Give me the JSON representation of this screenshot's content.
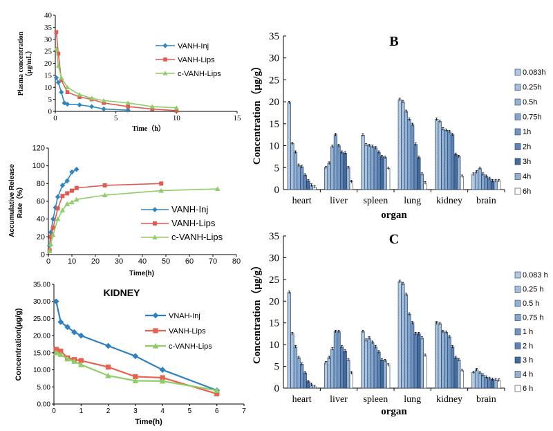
{
  "colors": {
    "inj": "#2e86c1",
    "lips": "#e05a4f",
    "clips": "#8fcd6a",
    "kidney_inj": "#2f80c0",
    "kidney_lips": "#e8604f",
    "kidney_clips": "#8fcd6a",
    "axis": "#000000",
    "bar_edge": "#1f3550"
  },
  "chart_data": [
    {
      "id": "plasma",
      "type": "line",
      "title": "",
      "xlabel": "Time（h）",
      "ylabel": [
        "Plasma concentration",
        "（μg/mL）"
      ],
      "xlim": [
        0,
        15
      ],
      "ylim": [
        0,
        40
      ],
      "xticks": [
        0,
        5,
        10,
        15
      ],
      "yticks": [
        0,
        5,
        10,
        15,
        20,
        25,
        30,
        35,
        40
      ],
      "legend_position": "right",
      "series": [
        {
          "name": "VANH-Inj",
          "color": "#2e86c1",
          "marker": "diamond",
          "x": [
            0.083,
            0.25,
            0.5,
            0.75,
            1,
            2,
            3,
            4,
            6
          ],
          "y": [
            14,
            12,
            8,
            3.5,
            3,
            2.7,
            2,
            1,
            0.5
          ]
        },
        {
          "name": "VANH-Lips",
          "color": "#e05a4f",
          "marker": "square",
          "x": [
            0.083,
            0.25,
            0.5,
            1,
            2,
            3,
            4,
            6,
            8,
            10
          ],
          "y": [
            33,
            24,
            13,
            8,
            6,
            5,
            3.5,
            2,
            1,
            0.3
          ]
        },
        {
          "name": "c-VANH-Lips",
          "color": "#8fcd6a",
          "marker": "triangle",
          "x": [
            0.083,
            0.25,
            0.5,
            1,
            2,
            3,
            4,
            6,
            8,
            10
          ],
          "y": [
            26,
            19,
            14,
            10,
            7,
            5.5,
            4.5,
            3.5,
            2,
            1.5
          ]
        }
      ]
    },
    {
      "id": "release",
      "type": "line",
      "title": "",
      "xlabel": "Time(h)",
      "ylabel": [
        "Accumulative Release",
        "Rate（%）"
      ],
      "xlim": [
        0,
        80
      ],
      "ylim": [
        0,
        120
      ],
      "xticks": [
        0,
        10,
        20,
        30,
        40,
        50,
        60,
        70,
        80
      ],
      "yticks": [
        0,
        20,
        40,
        60,
        80,
        100,
        120
      ],
      "legend_position": "bottom-right",
      "series": [
        {
          "name": "VANH-Inj",
          "color": "#2e86c1",
          "marker": "diamond",
          "x": [
            0.5,
            1,
            2,
            3,
            4,
            6,
            8,
            10,
            12
          ],
          "y": [
            10,
            25,
            40,
            53,
            65,
            78,
            83,
            93,
            96
          ]
        },
        {
          "name": "VANH-Lips",
          "color": "#e05a4f",
          "marker": "square",
          "x": [
            0.5,
            1,
            2,
            4,
            6,
            8,
            10,
            12,
            24,
            48
          ],
          "y": [
            5,
            20,
            30,
            52,
            66,
            69,
            72,
            75,
            78,
            80
          ]
        },
        {
          "name": "c-VANH-Lips",
          "color": "#8fcd6a",
          "marker": "triangle",
          "x": [
            0.5,
            1,
            2,
            4,
            6,
            8,
            10,
            12,
            24,
            48,
            72
          ],
          "y": [
            4,
            12,
            22,
            40,
            50,
            57,
            59,
            62,
            67,
            72,
            74
          ]
        }
      ]
    },
    {
      "id": "kidney",
      "type": "line",
      "title": "KIDNEY",
      "xlabel": "Time(h)",
      "ylabel": [
        "Concentration(μg/g)"
      ],
      "xlim": [
        0,
        7
      ],
      "ylim": [
        0,
        35
      ],
      "xticks": [
        0,
        1,
        2,
        3,
        4,
        5,
        6,
        7
      ],
      "xtick_labels": [
        "0",
        "1",
        "2",
        "3",
        "4",
        "5",
        "6",
        "7"
      ],
      "yticks": [
        0,
        5,
        10,
        15,
        20,
        25,
        30,
        35
      ],
      "ytick_labels": [
        "0.00",
        "5.00",
        "10.00",
        "15.00",
        "20.00",
        "25.00",
        "30.00",
        "35.00"
      ],
      "legend_position": "right",
      "series": [
        {
          "name": "VNAH-Inj",
          "color": "#2f80c0",
          "marker": "diamond",
          "x": [
            0.083,
            0.25,
            0.5,
            0.75,
            1,
            2,
            3,
            4,
            6
          ],
          "y": [
            30,
            24,
            22.5,
            21,
            20,
            17,
            14,
            10,
            4
          ]
        },
        {
          "name": "VANH-Lips",
          "color": "#e8604f",
          "marker": "square",
          "x": [
            0.083,
            0.25,
            0.5,
            0.75,
            1,
            2,
            3,
            4,
            6
          ],
          "y": [
            16,
            15.5,
            13.5,
            13,
            12.7,
            10.8,
            8,
            7.7,
            3
          ]
        },
        {
          "name": "c-VANH-Lips",
          "color": "#8fcd6a",
          "marker": "triangle",
          "x": [
            0.083,
            0.25,
            0.5,
            0.75,
            1,
            2,
            3,
            4,
            6
          ],
          "y": [
            15,
            14.5,
            13.2,
            12.5,
            11.5,
            8.3,
            6.8,
            6.7,
            4
          ]
        }
      ]
    },
    {
      "id": "B",
      "type": "bar",
      "title": "B",
      "xlabel": "organ",
      "ylabel": "Concentration（μg/g）",
      "ylim": [
        0,
        35
      ],
      "yticks": [
        0,
        5,
        10,
        15,
        20,
        25,
        30,
        35
      ],
      "categories": [
        "heart",
        "liver",
        "spleen",
        "lung",
        "kidney",
        "brain"
      ],
      "legend_position": "right",
      "series": [
        {
          "name": "0.083h",
          "values": [
            19.8,
            5.0,
            12.4,
            20.5,
            16.0,
            3.5
          ]
        },
        {
          "name": "0.25h",
          "values": [
            10.5,
            6.0,
            10.2,
            20.0,
            15.5,
            4.0
          ]
        },
        {
          "name": "0.5h",
          "values": [
            8.5,
            9.8,
            10.0,
            17.8,
            13.8,
            4.8
          ]
        },
        {
          "name": "0.75h",
          "values": [
            5.5,
            12.5,
            9.8,
            16.0,
            13.5,
            3.5
          ]
        },
        {
          "name": "1h",
          "values": [
            5.2,
            10.0,
            9.5,
            14.8,
            13.2,
            3.0
          ]
        },
        {
          "name": "2h",
          "values": [
            3.3,
            8.5,
            8.5,
            10.3,
            12.5,
            2.5
          ]
        },
        {
          "name": "3h",
          "values": [
            2.0,
            8.3,
            7.5,
            7.3,
            8.0,
            2.0
          ]
        },
        {
          "name": "4h",
          "values": [
            1.0,
            5.0,
            7.3,
            3.5,
            7.5,
            2.0
          ]
        },
        {
          "name": "6h",
          "values": [
            0.6,
            1.8,
            4.8,
            1.5,
            3.0,
            2.0
          ]
        }
      ]
    },
    {
      "id": "C",
      "type": "bar",
      "title": "C",
      "xlabel": "organ",
      "ylabel": "Concentration（μg/g）",
      "ylim": [
        0,
        35
      ],
      "yticks": [
        0,
        5,
        10,
        15,
        20,
        25,
        30,
        35
      ],
      "categories": [
        "heart",
        "liver",
        "spleen",
        "lung",
        "kidney",
        "brain"
      ],
      "legend_position": "right",
      "series": [
        {
          "name": "0.083 h",
          "values": [
            22.0,
            5.8,
            13.0,
            24.5,
            15.0,
            3.6
          ]
        },
        {
          "name": "0.25 h",
          "values": [
            12.5,
            7.0,
            11.0,
            24.0,
            14.8,
            4.2
          ]
        },
        {
          "name": "0.5 h",
          "values": [
            9.5,
            9.0,
            11.5,
            21.5,
            13.0,
            3.5
          ]
        },
        {
          "name": "0.75 h",
          "values": [
            7.0,
            13.0,
            10.5,
            17.0,
            12.8,
            3.0
          ]
        },
        {
          "name": "1 h",
          "values": [
            5.5,
            13.0,
            9.5,
            15.0,
            11.8,
            2.5
          ]
        },
        {
          "name": "2 h",
          "values": [
            3.5,
            9.5,
            8.3,
            12.5,
            9.5,
            2.2
          ]
        },
        {
          "name": "3 h",
          "values": [
            1.5,
            8.5,
            6.5,
            12.5,
            7.0,
            2.0
          ]
        },
        {
          "name": "4 h",
          "values": [
            0.8,
            6.5,
            6.3,
            11.5,
            6.5,
            1.9
          ]
        },
        {
          "name": "6 h",
          "values": [
            0.3,
            3.5,
            5.3,
            7.5,
            4.0,
            1.8
          ]
        }
      ]
    }
  ]
}
